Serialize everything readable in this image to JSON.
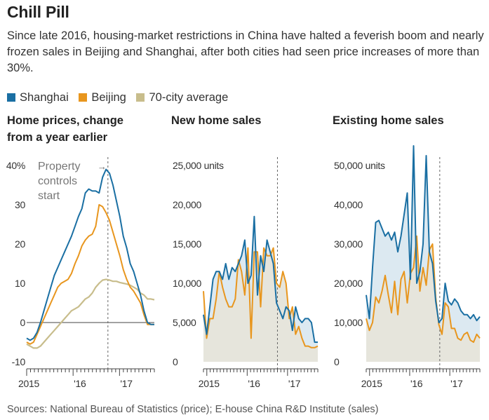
{
  "header": {
    "title": "Chill Pill",
    "subtitle": "Since late 2016, housing-market restrictions in China have halted a feverish boom and nearly frozen sales in Beijing and Shanghai, after both cities had seen price increases of more than 30%."
  },
  "legend": [
    {
      "label": "Shanghai",
      "color": "#1a6fa3"
    },
    {
      "label": "Beijing",
      "color": "#e8961e"
    },
    {
      "label": "70-city average",
      "color": "#c8bd8c"
    }
  ],
  "colors": {
    "shanghai": "#1a6fa3",
    "beijing": "#e8961e",
    "average": "#c8bd8c",
    "area_shanghai": "#dce9f1",
    "area_beijing": "#e6e5dc",
    "axis": "#444444",
    "grid": "#999999"
  },
  "footer": {
    "sources": "Sources: National Bureau of Statistics (price); E-house China R&D Institute (sales)"
  },
  "chart_data": [
    {
      "type": "line",
      "title": "Home prices, change from a year earlier",
      "title_lines": [
        "Home prices, change",
        "from a year earlier"
      ],
      "x_start": "2015-01",
      "x_end": "2017-10",
      "ylim": [
        -10,
        40
      ],
      "yticks": [
        -10,
        0,
        10,
        20,
        30,
        40
      ],
      "yticklabels": [
        "-10",
        "0",
        "10",
        "20",
        "30",
        "40%"
      ],
      "xticklabels": [
        {
          "label": "2015",
          "date": "2015-01"
        },
        {
          "label": "'16",
          "date": "2016-01"
        },
        {
          "label": "'17",
          "date": "2017-01"
        }
      ],
      "annotation": {
        "lines": [
          "Property",
          "controls",
          "start"
        ],
        "date": "2016-10"
      },
      "series": [
        {
          "name": "Shanghai",
          "values": [
            -4,
            -4.5,
            -4,
            -2.5,
            0,
            3,
            6,
            9,
            12,
            14,
            16,
            18,
            20,
            22,
            24.5,
            27,
            29,
            33,
            34,
            33.5,
            33.5,
            33,
            37,
            39,
            38,
            35,
            31,
            27,
            22,
            19,
            15,
            13,
            10,
            7,
            3,
            0,
            -0.5,
            -0.5
          ]
        },
        {
          "name": "Beijing",
          "values": [
            -5,
            -5.5,
            -5,
            -3,
            -1,
            1,
            3,
            5,
            7,
            9,
            10,
            10.5,
            11,
            12.5,
            15,
            17,
            19.5,
            21,
            22,
            22.5,
            24.5,
            30,
            29.5,
            28,
            26,
            23,
            20,
            17,
            13.5,
            11,
            9,
            8,
            6.5,
            5,
            2,
            -0.5,
            -0.5,
            -0.5
          ]
        },
        {
          "name": "70-city average",
          "values": [
            -5.5,
            -6,
            -6.5,
            -6.5,
            -6,
            -5,
            -4,
            -3,
            -2,
            -1,
            0,
            1,
            2,
            3,
            3.5,
            4,
            5,
            6,
            6.5,
            7.5,
            9,
            10,
            10.8,
            11,
            10.8,
            10.5,
            10.5,
            10.2,
            10,
            9.8,
            9.5,
            9,
            8.5,
            7.5,
            7,
            6,
            6,
            5.8
          ]
        }
      ]
    },
    {
      "type": "area",
      "title": "New home sales",
      "x_start": "2014-12",
      "x_end": "2017-10",
      "ylim": [
        0,
        25000
      ],
      "yticks": [
        0,
        5000,
        10000,
        15000,
        20000,
        25000
      ],
      "yticklabels": [
        "0",
        "5,000",
        "10,000",
        "15,000",
        "20,000",
        "25,000 units"
      ],
      "xticklabels": [
        {
          "label": "2015",
          "date": "2015-01"
        },
        {
          "label": "'16",
          "date": "2016-01"
        },
        {
          "label": "'17",
          "date": "2017-01"
        }
      ],
      "marker_date": "2016-10",
      "series": [
        {
          "name": "Shanghai",
          "values": [
            6000,
            3500,
            7000,
            10500,
            11500,
            11500,
            10500,
            12500,
            10500,
            12000,
            11500,
            12500,
            13500,
            15500,
            10000,
            11000,
            18500,
            8500,
            13500,
            11500,
            15500,
            14000,
            12500,
            7500,
            6500,
            5500,
            7000,
            6500,
            4000,
            7000,
            5500,
            5000,
            5500,
            5500,
            5000,
            2500,
            2500
          ]
        },
        {
          "name": "Beijing",
          "values": [
            9000,
            3000,
            5500,
            5500,
            8000,
            11500,
            9500,
            8000,
            7000,
            7000,
            8000,
            13000,
            11500,
            8500,
            14500,
            3000,
            14000,
            14000,
            7000,
            14500,
            13500,
            13500,
            14500,
            10000,
            9500,
            11500,
            10000,
            5500,
            7000,
            3500,
            4500,
            3000,
            2000,
            2000,
            1800,
            1800,
            2000
          ]
        }
      ]
    },
    {
      "type": "area",
      "title": "Existing home sales",
      "x_start": "2014-12",
      "x_end": "2017-10",
      "ylim": [
        0,
        50000
      ],
      "yticks": [
        0,
        10000,
        20000,
        30000,
        40000,
        50000
      ],
      "yticklabels": [
        "0",
        "10,000",
        "20,000",
        "30,000",
        "40,000",
        "50,000 units"
      ],
      "xticklabels": [
        {
          "label": "2015",
          "date": "2015-01"
        },
        {
          "label": "'16",
          "date": "2016-01"
        },
        {
          "label": "'17",
          "date": "2017-01"
        }
      ],
      "marker_date": "2016-10",
      "series": [
        {
          "name": "Shanghai",
          "values": [
            17000,
            11000,
            24000,
            35500,
            36000,
            34000,
            32000,
            33000,
            31000,
            33000,
            28000,
            32000,
            37500,
            43000,
            21000,
            55000,
            20000,
            23000,
            30000,
            52500,
            28000,
            25000,
            15500,
            10000,
            11000,
            20000,
            15500,
            14500,
            16000,
            15000,
            13000,
            12000,
            12000,
            11000,
            12000,
            10500,
            11500
          ]
        },
        {
          "name": "Beijing",
          "values": [
            11000,
            8000,
            10000,
            16500,
            15000,
            18000,
            22000,
            17000,
            12500,
            20500,
            12000,
            21000,
            23000,
            15000,
            22500,
            24000,
            32000,
            18000,
            24000,
            19500,
            28500,
            30000,
            16500,
            9500,
            7000,
            15000,
            14000,
            8500,
            8500,
            6000,
            5500,
            7000,
            7500,
            5500,
            5000,
            7000,
            6000
          ]
        }
      ]
    }
  ]
}
